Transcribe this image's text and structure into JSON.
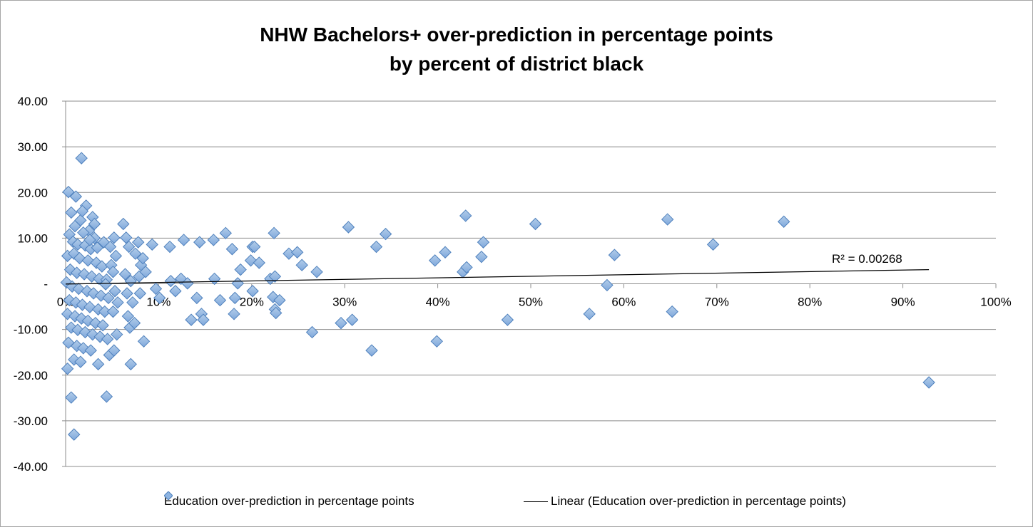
{
  "chart_data": {
    "type": "scatter",
    "title": [
      "NHW Bachelors+ over-prediction in percentage points",
      "by percent of district black"
    ],
    "xlim": [
      0,
      1
    ],
    "ylim": [
      -40,
      40
    ],
    "x_ticks": [
      "0%",
      "10%",
      "20%",
      "30%",
      "40%",
      "50%",
      "60%",
      "70%",
      "80%",
      "90%",
      "100%"
    ],
    "y_ticks": [
      "40.00",
      "30.00",
      "20.00",
      "10.00",
      "-",
      "-10.00",
      "-20.00",
      "-30.00",
      "-40.00"
    ],
    "grid": "horizontal",
    "legend_position": "bottom",
    "series": [
      {
        "name": "Education over-prediction in percentage points",
        "marker": "diamond",
        "color": "#8db4e2",
        "edge_color": "#4f81bd",
        "points": [
          [
            0.017,
            27.5
          ],
          [
            0.003,
            20.1
          ],
          [
            0.011,
            19.1
          ],
          [
            0.022,
            17.1
          ],
          [
            0.006,
            15.6
          ],
          [
            0.029,
            14.6
          ],
          [
            0.016,
            13.9
          ],
          [
            0.01,
            12.6
          ],
          [
            0.025,
            11.6
          ],
          [
            0.004,
            10.8
          ],
          [
            0.019,
            11.2
          ],
          [
            0.031,
            10.0
          ],
          [
            0.008,
            9.2
          ],
          [
            0.013,
            8.6
          ],
          [
            0.021,
            8.4
          ],
          [
            0.027,
            7.6
          ],
          [
            0.034,
            7.9
          ],
          [
            0.002,
            6.1
          ],
          [
            0.009,
            6.6
          ],
          [
            0.015,
            5.6
          ],
          [
            0.024,
            5.1
          ],
          [
            0.033,
            4.6
          ],
          [
            0.039,
            3.8
          ],
          [
            0.005,
            3.1
          ],
          [
            0.012,
            2.4
          ],
          [
            0.02,
            2.1
          ],
          [
            0.028,
            1.6
          ],
          [
            0.036,
            1.1
          ],
          [
            0.044,
            0.9
          ],
          [
            0.001,
            0.3
          ],
          [
            0.007,
            -0.6
          ],
          [
            0.014,
            -1.1
          ],
          [
            0.023,
            -1.6
          ],
          [
            0.03,
            -2.1
          ],
          [
            0.038,
            -2.6
          ],
          [
            0.046,
            -3.1
          ],
          [
            0.004,
            -3.6
          ],
          [
            0.011,
            -4.1
          ],
          [
            0.018,
            -4.6
          ],
          [
            0.026,
            -5.1
          ],
          [
            0.035,
            -5.6
          ],
          [
            0.042,
            -6.1
          ],
          [
            0.002,
            -6.6
          ],
          [
            0.01,
            -7.1
          ],
          [
            0.017,
            -7.6
          ],
          [
            0.024,
            -8.1
          ],
          [
            0.032,
            -8.6
          ],
          [
            0.04,
            -9.1
          ],
          [
            0.006,
            -9.6
          ],
          [
            0.013,
            -10.1
          ],
          [
            0.021,
            -10.6
          ],
          [
            0.029,
            -11.1
          ],
          [
            0.037,
            -11.6
          ],
          [
            0.045,
            -12.1
          ],
          [
            0.003,
            -12.9
          ],
          [
            0.012,
            -13.6
          ],
          [
            0.019,
            -14.1
          ],
          [
            0.027,
            -14.6
          ],
          [
            0.047,
            -15.6
          ],
          [
            0.009,
            -16.6
          ],
          [
            0.016,
            -17.1
          ],
          [
            0.035,
            -17.6
          ],
          [
            0.002,
            -18.6
          ],
          [
            0.006,
            -24.9
          ],
          [
            0.044,
            -24.7
          ],
          [
            0.009,
            -33.0
          ],
          [
            0.018,
            15.9
          ],
          [
            0.031,
            13.1
          ],
          [
            0.026,
            9.6
          ],
          [
            0.041,
            9.1
          ],
          [
            0.048,
            8.1
          ],
          [
            0.052,
            10.1
          ],
          [
            0.054,
            6.1
          ],
          [
            0.049,
            4.1
          ],
          [
            0.051,
            2.6
          ],
          [
            0.043,
            -0.1
          ],
          [
            0.053,
            -1.6
          ],
          [
            0.056,
            -4.1
          ],
          [
            0.051,
            -6.1
          ],
          [
            0.055,
            -11.1
          ],
          [
            0.052,
            -14.6
          ],
          [
            0.062,
            13.1
          ],
          [
            0.065,
            10.1
          ],
          [
            0.068,
            8.1
          ],
          [
            0.064,
            2.1
          ],
          [
            0.07,
            0.6
          ],
          [
            0.066,
            -2.1
          ],
          [
            0.072,
            -4.1
          ],
          [
            0.067,
            -7.1
          ],
          [
            0.069,
            -9.6
          ],
          [
            0.07,
            -17.6
          ],
          [
            0.075,
            6.6
          ],
          [
            0.078,
            9.1
          ],
          [
            0.081,
            4.1
          ],
          [
            0.083,
            5.6
          ],
          [
            0.079,
            1.6
          ],
          [
            0.086,
            2.6
          ],
          [
            0.08,
            -2.1
          ],
          [
            0.074,
            -8.6
          ],
          [
            0.084,
            -12.6
          ],
          [
            0.093,
            8.6
          ],
          [
            0.097,
            -1.1
          ],
          [
            0.101,
            -3.1
          ],
          [
            0.113,
            0.6
          ],
          [
            0.112,
            8.1
          ],
          [
            0.118,
            -1.6
          ],
          [
            0.124,
            1.1
          ],
          [
            0.127,
            9.6
          ],
          [
            0.131,
            0.1
          ],
          [
            0.135,
            -7.9
          ],
          [
            0.141,
            -3.1
          ],
          [
            0.144,
            9.1
          ],
          [
            0.146,
            -6.6
          ],
          [
            0.148,
            -7.9
          ],
          [
            0.159,
            9.6
          ],
          [
            0.16,
            1.1
          ],
          [
            0.166,
            -3.6
          ],
          [
            0.172,
            11.1
          ],
          [
            0.179,
            7.6
          ],
          [
            0.181,
            -6.6
          ],
          [
            0.182,
            -3.1
          ],
          [
            0.185,
            0.1
          ],
          [
            0.188,
            3.1
          ],
          [
            0.199,
            5.1
          ],
          [
            0.201,
            8.1
          ],
          [
            0.203,
            8.1
          ],
          [
            0.201,
            -1.6
          ],
          [
            0.208,
            4.6
          ],
          [
            0.22,
            1.1
          ],
          [
            0.224,
            11.1
          ],
          [
            0.225,
            1.6
          ],
          [
            0.223,
            -2.9
          ],
          [
            0.225,
            -5.6
          ],
          [
            0.226,
            -6.4
          ],
          [
            0.23,
            -3.6
          ],
          [
            0.24,
            6.6
          ],
          [
            0.249,
            6.9
          ],
          [
            0.254,
            4.1
          ],
          [
            0.265,
            -10.6
          ],
          [
            0.27,
            2.6
          ],
          [
            0.296,
            -8.6
          ],
          [
            0.304,
            12.4
          ],
          [
            0.308,
            -7.9
          ],
          [
            0.329,
            -14.6
          ],
          [
            0.334,
            8.1
          ],
          [
            0.344,
            10.9
          ],
          [
            0.397,
            5.1
          ],
          [
            0.399,
            -12.6
          ],
          [
            0.408,
            6.9
          ],
          [
            0.427,
            2.6
          ],
          [
            0.43,
            14.9
          ],
          [
            0.431,
            3.6
          ],
          [
            0.447,
            5.9
          ],
          [
            0.449,
            9.1
          ],
          [
            0.475,
            -7.9
          ],
          [
            0.505,
            13.1
          ],
          [
            0.563,
            -6.6
          ],
          [
            0.582,
            -0.3
          ],
          [
            0.59,
            6.3
          ],
          [
            0.647,
            14.1
          ],
          [
            0.652,
            -6.1
          ],
          [
            0.696,
            8.6
          ],
          [
            0.772,
            13.6
          ],
          [
            0.928,
            -21.6
          ]
        ]
      }
    ],
    "trendline": {
      "name": "Linear (Education over-prediction in percentage points)",
      "type": "linear",
      "x_range": [
        0,
        0.928
      ],
      "y_start": -0.05,
      "y_end": 3.1,
      "color": "#000000",
      "label": "R² = 0.00268"
    }
  }
}
